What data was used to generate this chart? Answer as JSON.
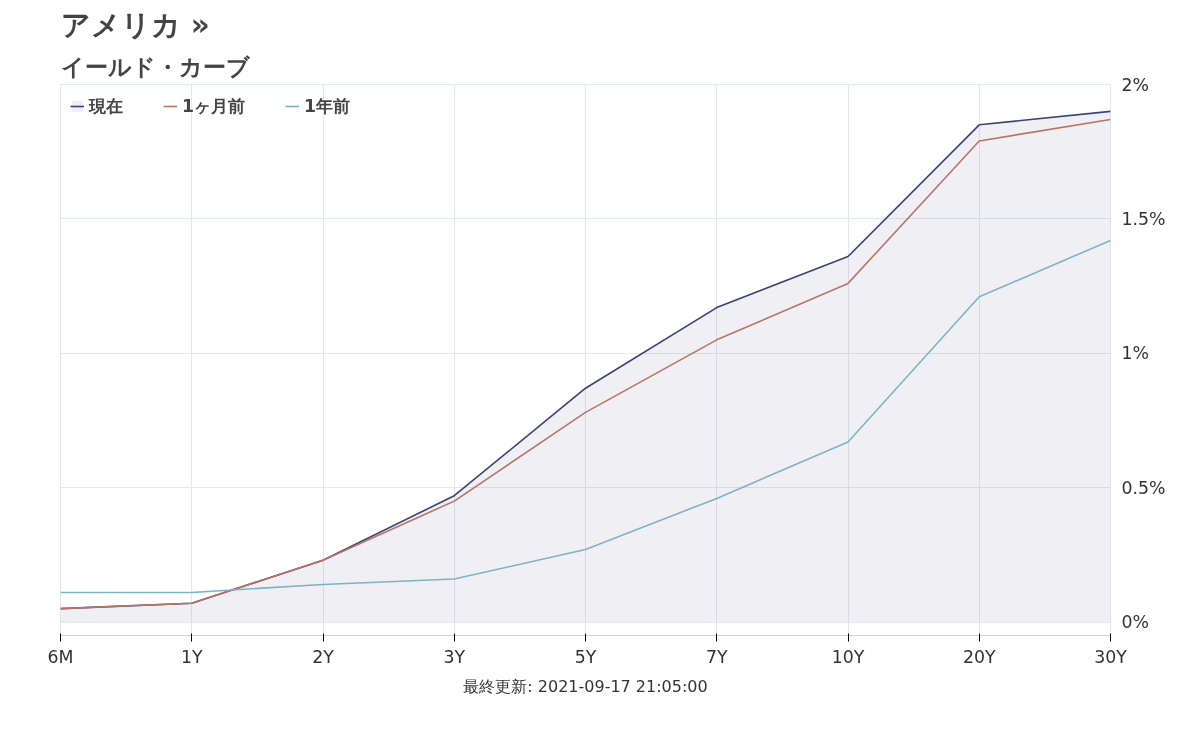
{
  "chart_data": {
    "type": "line",
    "title": "アメリカ »",
    "subtitle": "イールド・カーブ",
    "categories": [
      "6M",
      "1Y",
      "2Y",
      "3Y",
      "5Y",
      "7Y",
      "10Y",
      "20Y",
      "30Y"
    ],
    "series": [
      {
        "name": "現在",
        "color": "#3b4371",
        "type": "area",
        "values": [
          0.05,
          0.07,
          0.23,
          0.47,
          0.87,
          1.17,
          1.36,
          1.85,
          1.9
        ]
      },
      {
        "name": "1ヶ月前",
        "color": "#b87468",
        "values": [
          0.05,
          0.07,
          0.23,
          0.45,
          0.78,
          1.05,
          1.26,
          1.79,
          1.87
        ]
      },
      {
        "name": "1年前",
        "color": "#7fb3c2",
        "values": [
          0.11,
          0.11,
          0.14,
          0.16,
          0.27,
          0.46,
          0.67,
          1.21,
          1.42
        ]
      }
    ],
    "ylim": [
      -0.05,
      2
    ],
    "yticks": [
      {
        "value": 0,
        "label": "0%"
      },
      {
        "value": 0.5,
        "label": "0.5%"
      },
      {
        "value": 1,
        "label": "1%"
      },
      {
        "value": 1.5,
        "label": "1.5%"
      },
      {
        "value": 2,
        "label": "2%"
      }
    ],
    "grid": true,
    "legend": "top left",
    "marker": "none",
    "line_style": "solid",
    "annotations": [
      "最終更新: 2021-09-17 21:05:00"
    ]
  }
}
